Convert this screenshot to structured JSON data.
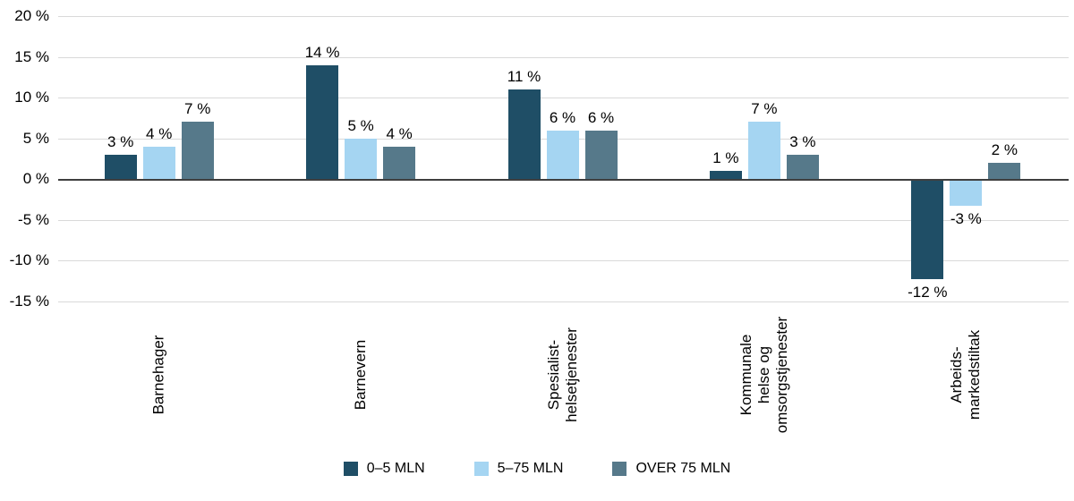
{
  "chart_data": {
    "type": "bar",
    "title": "",
    "categories": [
      {
        "id": "barnehager",
        "lines": [
          "Barnehager"
        ]
      },
      {
        "id": "barnevern",
        "lines": [
          "Barnevern"
        ]
      },
      {
        "id": "spesialisthelsetjenester",
        "lines": [
          "Spesialist-",
          "helsetjenester"
        ]
      },
      {
        "id": "kommunale-helse-og-omsorgstjenester",
        "lines": [
          "Kommunale",
          "helse og",
          "omsorgstjenester"
        ]
      },
      {
        "id": "arbeidsmarkedstiltak",
        "lines": [
          "Arbeids-",
          "markedstiltak"
        ]
      }
    ],
    "series": [
      {
        "name": "0–5 MLN",
        "color": "#1f4e66",
        "values": [
          3,
          14,
          11,
          1,
          -12
        ],
        "labels": [
          "3 %",
          "14 %",
          "11 %",
          "1 %",
          "-12 %"
        ]
      },
      {
        "name": "5–75 MLN",
        "color": "#a5d5f2",
        "values": [
          4,
          5,
          6,
          7,
          -3
        ],
        "labels": [
          "4 %",
          "5 %",
          "6 %",
          "7 %",
          "-3 %"
        ]
      },
      {
        "name": "OVER 75 MLN",
        "color": "#56798a",
        "values": [
          7,
          4,
          6,
          3,
          2
        ],
        "labels": [
          "7 %",
          "4 %",
          "6 %",
          "3 %",
          "2 %"
        ]
      }
    ],
    "y_axis": {
      "min": -15,
      "max": 20,
      "tick_step": 5,
      "ticks": [
        {
          "value": 20,
          "label": "20 %"
        },
        {
          "value": 15,
          "label": "15 %"
        },
        {
          "value": 10,
          "label": "10 %"
        },
        {
          "value": 5,
          "label": "5 %"
        },
        {
          "value": 0,
          "label": "0 %"
        },
        {
          "value": -5,
          "label": "-5 %"
        },
        {
          "value": -10,
          "label": "-10 %"
        },
        {
          "value": -15,
          "label": "-15 %"
        }
      ]
    },
    "grid": true,
    "legend_position": "bottom"
  }
}
